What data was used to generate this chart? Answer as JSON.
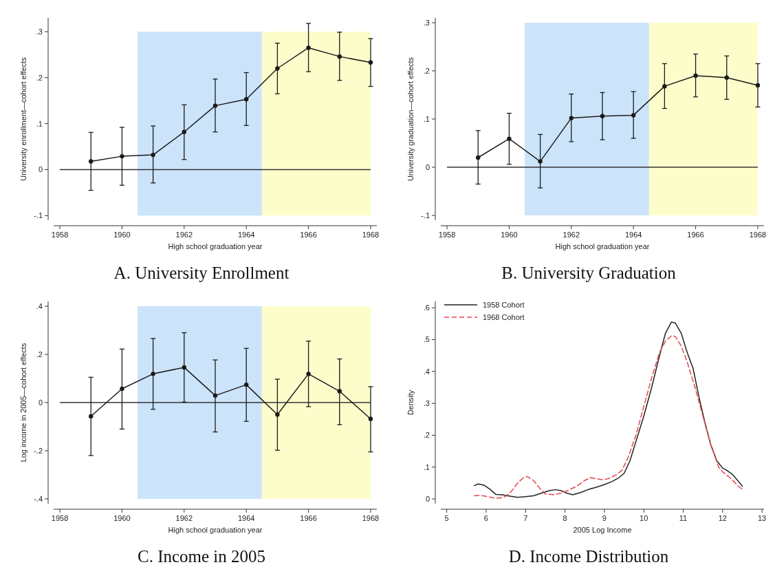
{
  "chart_data": [
    {
      "type": "line",
      "title": "A. University Enrollment",
      "xlabel": "High school graduation year",
      "ylabel": "University enrollment—cohort effects",
      "x": [
        1959,
        1960,
        1961,
        1962,
        1963,
        1964,
        1965,
        1966,
        1967,
        1968
      ],
      "xlim": [
        1957.8,
        1968.2
      ],
      "xticks": [
        1958,
        1960,
        1962,
        1964,
        1966,
        1968
      ],
      "ylim": [
        -0.11,
        0.33
      ],
      "yticks": [
        {
          "value": -0.1,
          "label": "-.1"
        },
        {
          "value": 0,
          "label": "0"
        },
        {
          "value": 0.1,
          "label": ".1"
        },
        {
          "value": 0.2,
          "label": ".2"
        },
        {
          "value": 0.3,
          "label": ".3"
        }
      ],
      "marker": "circle",
      "series": [
        {
          "color": "#1a1a1a",
          "values": [
            0.018,
            0.029,
            0.032,
            0.082,
            0.139,
            0.153,
            0.22,
            0.265,
            0.246,
            0.233
          ],
          "errors": [
            [
              -0.045,
              0.081
            ],
            [
              -0.034,
              0.092
            ],
            [
              -0.029,
              0.095
            ],
            [
              0.022,
              0.141
            ],
            [
              0.082,
              0.197
            ],
            [
              0.096,
              0.211
            ],
            [
              0.165,
              0.275
            ],
            [
              0.213,
              0.318
            ],
            [
              0.194,
              0.299
            ],
            [
              0.181,
              0.285
            ]
          ]
        }
      ],
      "bands": [
        {
          "axis": "x",
          "from": 1960.5,
          "to": 1964.5,
          "color": "#cce4fa"
        },
        {
          "axis": "x",
          "from": 1964.5,
          "to": 1968,
          "color": "#fdfdcc"
        }
      ],
      "ref_lines": [
        {
          "axis": "y",
          "value": 0,
          "color": "#333333"
        }
      ]
    },
    {
      "type": "line",
      "title": "B. University Graduation",
      "xlabel": "High school graduation year",
      "ylabel": "University graduation—cohort effects",
      "x": [
        1959,
        1960,
        1961,
        1962,
        1963,
        1964,
        1965,
        1966,
        1967,
        1968
      ],
      "xlim": [
        1957.8,
        1968.2
      ],
      "xticks": [
        1958,
        1960,
        1962,
        1964,
        1966,
        1968
      ],
      "ylim": [
        -0.11,
        0.31
      ],
      "yticks": [
        {
          "value": -0.1,
          "label": "-.1"
        },
        {
          "value": 0,
          "label": "0"
        },
        {
          "value": 0.1,
          "label": ".1"
        },
        {
          "value": 0.2,
          "label": ".2"
        },
        {
          "value": 0.3,
          "label": ".3"
        }
      ],
      "marker": "circle",
      "series": [
        {
          "color": "#1a1a1a",
          "values": [
            0.02,
            0.059,
            0.012,
            0.102,
            0.106,
            0.108,
            0.168,
            0.19,
            0.186,
            0.17
          ],
          "errors": [
            [
              -0.035,
              0.076
            ],
            [
              0.006,
              0.112
            ],
            [
              -0.043,
              0.068
            ],
            [
              0.053,
              0.152
            ],
            [
              0.057,
              0.155
            ],
            [
              0.06,
              0.157
            ],
            [
              0.122,
              0.215
            ],
            [
              0.146,
              0.235
            ],
            [
              0.141,
              0.231
            ],
            [
              0.125,
              0.215
            ]
          ]
        }
      ],
      "bands": [
        {
          "axis": "x",
          "from": 1960.5,
          "to": 1964.5,
          "color": "#cce4fa"
        },
        {
          "axis": "x",
          "from": 1964.5,
          "to": 1968,
          "color": "#fdfdcc"
        }
      ],
      "ref_lines": [
        {
          "axis": "y",
          "value": 0,
          "color": "#333333"
        }
      ]
    },
    {
      "type": "line",
      "title": "C. Income in 2005",
      "xlabel": "High school graduation year",
      "ylabel": "Log income in 2005—cohort effects",
      "x": [
        1959,
        1960,
        1961,
        1962,
        1963,
        1964,
        1965,
        1966,
        1967,
        1968
      ],
      "xlim": [
        1957.8,
        1968.2
      ],
      "xticks": [
        1958,
        1960,
        1962,
        1964,
        1966,
        1968
      ],
      "ylim": [
        -0.42,
        0.42
      ],
      "yticks": [
        {
          "value": -0.4,
          "label": "-.4"
        },
        {
          "value": -0.2,
          "label": "-.2"
        },
        {
          "value": 0,
          "label": "0"
        },
        {
          "value": 0.2,
          "label": ".2"
        },
        {
          "value": 0.4,
          "label": ".4"
        }
      ],
      "marker": "circle",
      "series": [
        {
          "color": "#1a1a1a",
          "values": [
            -0.057,
            0.057,
            0.119,
            0.146,
            0.029,
            0.074,
            -0.05,
            0.119,
            0.047,
            -0.068
          ],
          "errors": [
            [
              -0.22,
              0.105
            ],
            [
              -0.11,
              0.222
            ],
            [
              -0.028,
              0.266
            ],
            [
              0.002,
              0.29
            ],
            [
              -0.122,
              0.177
            ],
            [
              -0.078,
              0.225
            ],
            [
              -0.198,
              0.097
            ],
            [
              -0.017,
              0.255
            ],
            [
              -0.092,
              0.181
            ],
            [
              -0.205,
              0.066
            ]
          ]
        }
      ],
      "bands": [
        {
          "axis": "x",
          "from": 1960.5,
          "to": 1964.5,
          "color": "#cce4fa"
        },
        {
          "axis": "x",
          "from": 1964.5,
          "to": 1968,
          "color": "#fdfdcc"
        }
      ],
      "ref_lines": [
        {
          "axis": "y",
          "value": 0,
          "color": "#333333"
        }
      ]
    },
    {
      "type": "line",
      "title": "D. Income Distribution",
      "xlabel": "2005 Log Income",
      "ylabel": "Density",
      "xlim": [
        4.85,
        13.05
      ],
      "xticks": [
        5,
        6,
        7,
        8,
        9,
        10,
        11,
        12,
        13
      ],
      "ylim": [
        -0.015,
        0.62
      ],
      "yticks": [
        {
          "value": 0,
          "label": "0"
        },
        {
          "value": 0.1,
          "label": ".1"
        },
        {
          "value": 0.2,
          "label": ".2"
        },
        {
          "value": 0.3,
          "label": ".3"
        },
        {
          "value": 0.4,
          "label": ".4"
        },
        {
          "value": 0.5,
          "label": ".5"
        },
        {
          "value": 0.6,
          "label": ".6"
        }
      ],
      "legend": "top left",
      "marker": "none",
      "series": [
        {
          "name": "1958 Cohort",
          "color": "#222222",
          "line_style": "solid",
          "x": [
            5.7,
            5.8,
            5.95,
            6.1,
            6.25,
            6.4,
            6.6,
            6.8,
            7.0,
            7.2,
            7.4,
            7.6,
            7.75,
            7.9,
            8.05,
            8.2,
            8.4,
            8.6,
            8.8,
            9.0,
            9.2,
            9.35,
            9.5,
            9.65,
            9.8,
            10.0,
            10.2,
            10.4,
            10.55,
            10.7,
            10.8,
            10.95,
            11.1,
            11.25,
            11.4,
            11.55,
            11.7,
            11.85,
            12.0,
            12.1,
            12.25,
            12.4,
            12.5
          ],
          "values": [
            0.042,
            0.047,
            0.043,
            0.03,
            0.014,
            0.013,
            0.009,
            0.005,
            0.007,
            0.01,
            0.018,
            0.026,
            0.029,
            0.026,
            0.018,
            0.013,
            0.02,
            0.03,
            0.037,
            0.045,
            0.055,
            0.065,
            0.08,
            0.12,
            0.18,
            0.26,
            0.35,
            0.45,
            0.52,
            0.555,
            0.552,
            0.52,
            0.46,
            0.41,
            0.32,
            0.24,
            0.17,
            0.12,
            0.097,
            0.09,
            0.077,
            0.055,
            0.04
          ]
        },
        {
          "name": "1968 Cohort",
          "color": "#e8474c",
          "line_style": "dashed",
          "x": [
            5.7,
            5.85,
            6.0,
            6.2,
            6.35,
            6.5,
            6.65,
            6.8,
            6.95,
            7.05,
            7.2,
            7.35,
            7.5,
            7.7,
            7.9,
            8.1,
            8.3,
            8.5,
            8.65,
            8.8,
            9.0,
            9.15,
            9.3,
            9.45,
            9.6,
            9.8,
            10.0,
            10.2,
            10.4,
            10.55,
            10.7,
            10.8,
            10.95,
            11.1,
            11.3,
            11.5,
            11.7,
            11.9,
            12.0,
            12.2,
            12.4,
            12.5
          ],
          "values": [
            0.01,
            0.011,
            0.008,
            0.003,
            0.003,
            0.008,
            0.025,
            0.05,
            0.067,
            0.07,
            0.058,
            0.035,
            0.016,
            0.013,
            0.018,
            0.028,
            0.04,
            0.058,
            0.067,
            0.063,
            0.06,
            0.066,
            0.076,
            0.09,
            0.13,
            0.2,
            0.29,
            0.38,
            0.46,
            0.495,
            0.512,
            0.51,
            0.48,
            0.43,
            0.35,
            0.26,
            0.17,
            0.1,
            0.085,
            0.065,
            0.04,
            0.03
          ]
        }
      ]
    }
  ]
}
